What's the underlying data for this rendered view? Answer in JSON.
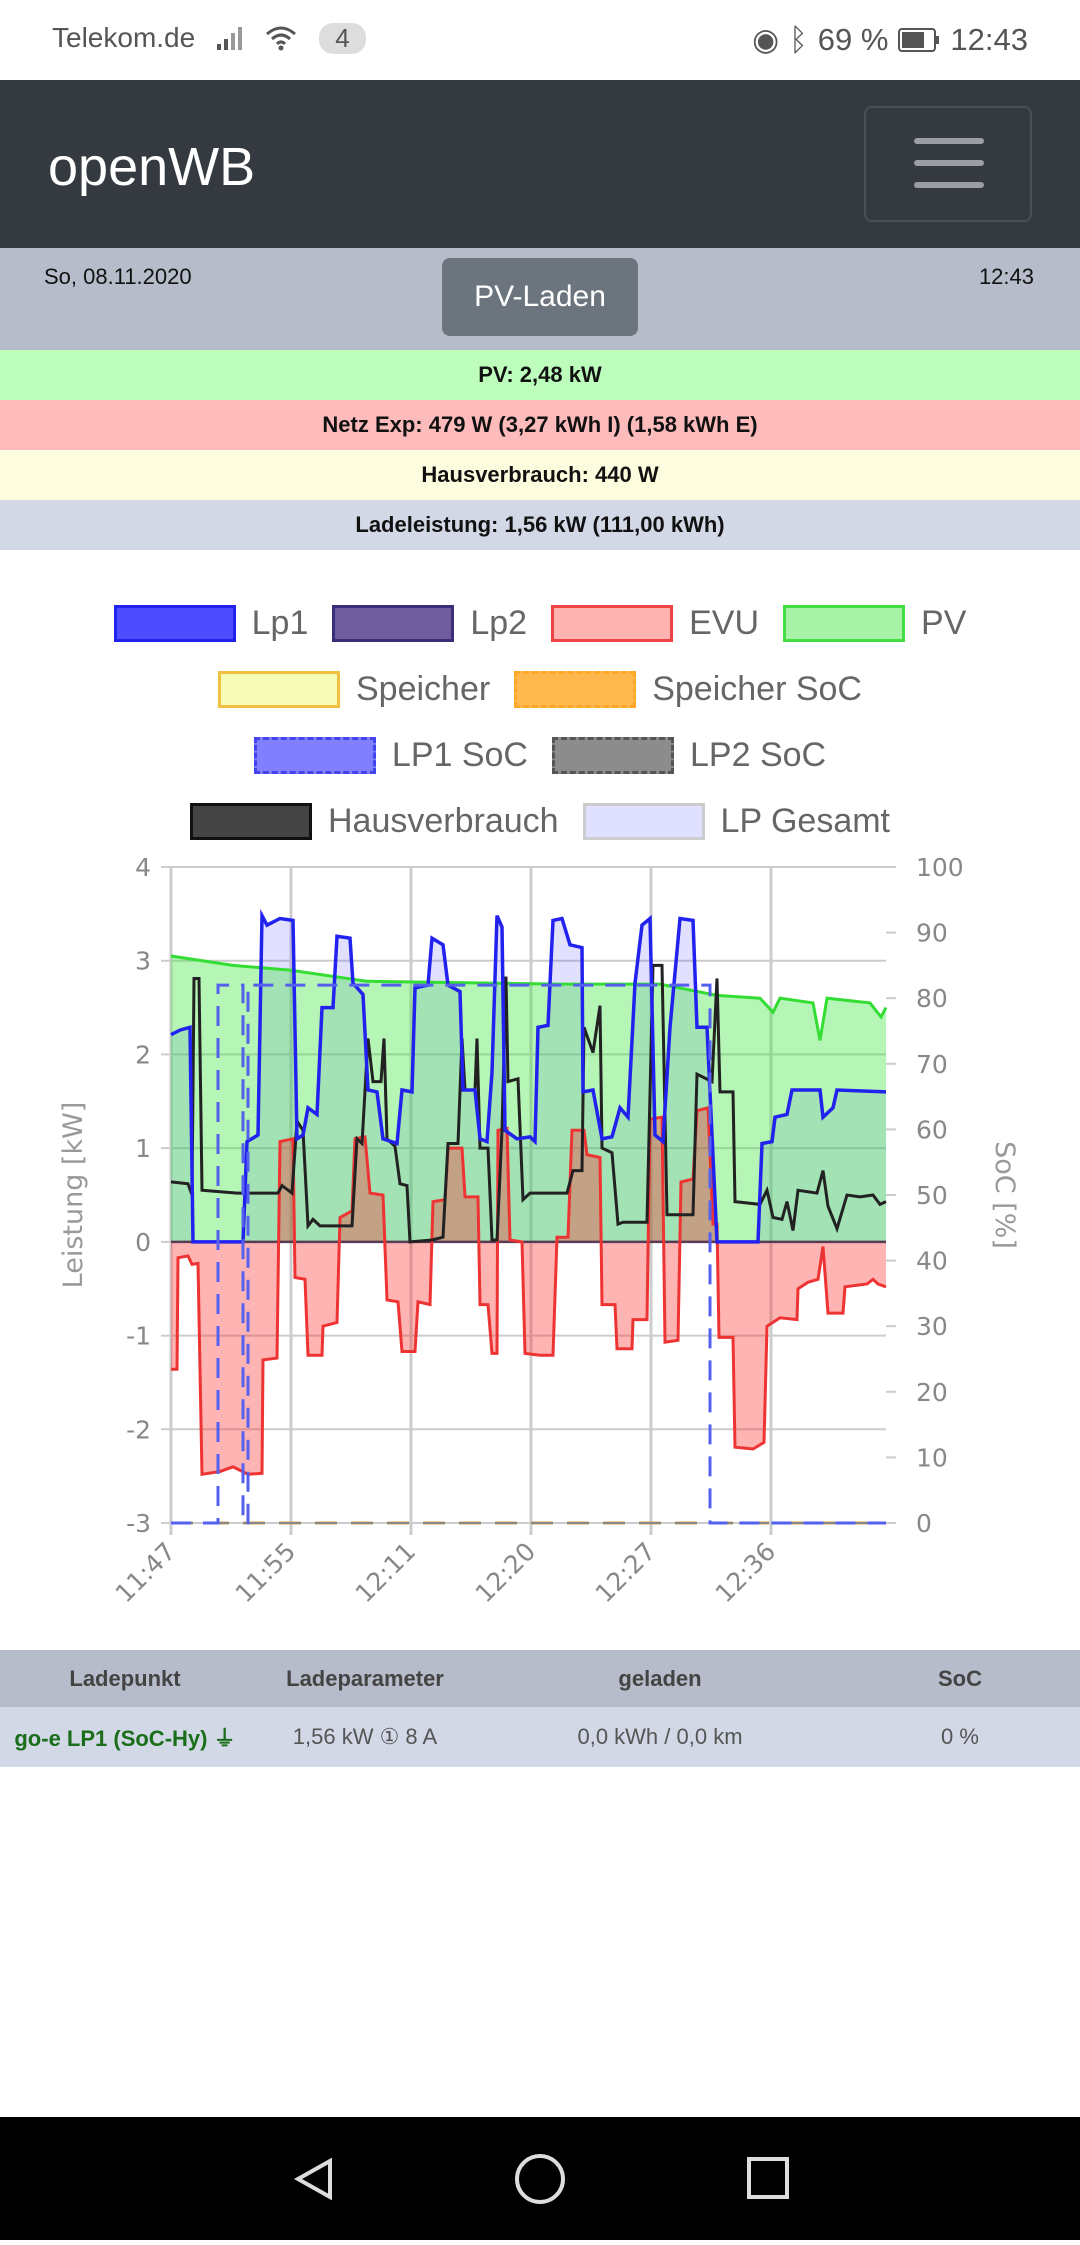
{
  "status_bar": {
    "carrier": "Telekom.de",
    "notification_count": "4",
    "battery": "69 %",
    "time": "12:43"
  },
  "navbar": {
    "brand": "openWB",
    "menu_icon": "hamburger-icon"
  },
  "info": {
    "date": "So, 08.11.2020",
    "mode_button": "PV-Laden",
    "time": "12:43"
  },
  "summary": {
    "pv": "PV: 2,48 kW",
    "netz": "Netz Exp: 479 W (3,27 kWh I) (1,58 kWh E)",
    "haus": "Hausverbrauch: 440 W",
    "lade": "Ladeleistung: 1,56 kW (111,00 kWh)"
  },
  "colors": {
    "pv_bg": "#bdfebd",
    "netz_bg": "#fdbbbb",
    "haus_bg": "#fefcdf",
    "lade_bg": "#d2d8e6"
  },
  "chart_data": {
    "type": "line",
    "ylabel": "Leistung [kW]",
    "y2label": "SoC [%]",
    "ylim": [
      -3,
      4
    ],
    "y2lim": [
      0,
      100
    ],
    "yticks": [
      "4",
      "3",
      "2",
      "1",
      "0",
      "-1",
      "-2",
      "-3"
    ],
    "y2ticks": [
      "100",
      "90",
      "80",
      "70",
      "60",
      "50",
      "40",
      "30",
      "20",
      "10",
      "0"
    ],
    "xlim": [
      0,
      71.5
    ],
    "xticks": [
      {
        "x": 0,
        "label": "11:47"
      },
      {
        "x": 12,
        "label": "11:55"
      },
      {
        "x": 24,
        "label": "12:11"
      },
      {
        "x": 36,
        "label": "12:20"
      },
      {
        "x": 48,
        "label": "12:27"
      },
      {
        "x": 60,
        "label": "12:36"
      }
    ],
    "grid": true,
    "legend": [
      [
        {
          "name": "Lp1",
          "fill": "#4d4dff",
          "border": "#2222ee"
        },
        {
          "name": "Lp2",
          "fill": "#6e5c9e",
          "border": "#3b2f7c"
        },
        {
          "name": "EVU",
          "fill": "#ffb3b3",
          "border": "#ee4444"
        },
        {
          "name": "PV",
          "fill": "#a8f2a8",
          "border": "#44dd44"
        }
      ],
      [
        {
          "name": "Speicher",
          "fill": "#f6fbb5",
          "border": "#f0c040"
        },
        {
          "name": "Speicher SoC",
          "fill": "#ffb84d",
          "border": "#ffa726",
          "dashed": true
        }
      ],
      [
        {
          "name": "LP1 SoC",
          "fill": "#8080ff",
          "border": "#4444ee",
          "dashed": true
        },
        {
          "name": "LP2 SoC",
          "fill": "#8c8c8c",
          "border": "#555555",
          "dashed": true
        }
      ],
      [
        {
          "name": "Hausverbrauch",
          "fill": "#444444",
          "border": "#111111"
        },
        {
          "name": "LP Gesamt",
          "fill": "#e0e0ff",
          "border": "#cccccc"
        }
      ]
    ],
    "series": {
      "pv": [
        [
          0,
          3.05
        ],
        [
          6.2,
          2.95
        ],
        [
          11.9,
          2.9
        ],
        [
          19.6,
          2.78
        ],
        [
          38.9,
          2.75
        ],
        [
          48.9,
          2.75
        ],
        [
          54.6,
          2.63
        ],
        [
          58.9,
          2.6
        ],
        [
          60.2,
          2.45
        ],
        [
          60.9,
          2.6
        ],
        [
          64.2,
          2.55
        ],
        [
          64.9,
          2.15
        ],
        [
          65.6,
          2.6
        ],
        [
          69.9,
          2.55
        ],
        [
          71,
          2.4
        ],
        [
          71.5,
          2.5
        ]
      ],
      "lp1": [
        [
          0,
          2.21
        ],
        [
          0.9,
          2.26
        ],
        [
          1.9,
          2.29
        ],
        [
          2.2,
          0
        ],
        [
          7.2,
          0
        ],
        [
          7.6,
          1.07
        ],
        [
          8.7,
          1.14
        ],
        [
          9.1,
          3.48
        ],
        [
          9.6,
          3.38
        ],
        [
          10.9,
          3.45
        ],
        [
          12.2,
          3.43
        ],
        [
          12.6,
          1.1
        ],
        [
          13.2,
          1.14
        ],
        [
          13.7,
          1.43
        ],
        [
          14.6,
          1.36
        ],
        [
          15.1,
          2.5
        ],
        [
          16.2,
          2.5
        ],
        [
          16.6,
          3.26
        ],
        [
          17.9,
          3.24
        ],
        [
          18.2,
          2.76
        ],
        [
          19.2,
          2.64
        ],
        [
          19.7,
          1.62
        ],
        [
          20.6,
          1.6
        ],
        [
          21.2,
          1.1
        ],
        [
          22.6,
          1.05
        ],
        [
          23.1,
          1.62
        ],
        [
          24.1,
          1.6
        ],
        [
          24.4,
          2.71
        ],
        [
          25.7,
          2.74
        ],
        [
          26.1,
          3.24
        ],
        [
          27.2,
          3.17
        ],
        [
          27.7,
          2.74
        ],
        [
          28.9,
          2.67
        ],
        [
          29.2,
          1.62
        ],
        [
          30.4,
          1.62
        ],
        [
          30.9,
          1.1
        ],
        [
          31.6,
          1.07
        ],
        [
          32.1,
          1.81
        ],
        [
          32.6,
          3.48
        ],
        [
          33.1,
          3.36
        ],
        [
          33.4,
          1.19
        ],
        [
          34.6,
          1.1
        ],
        [
          35.9,
          1.12
        ],
        [
          36.4,
          1.07
        ],
        [
          36.7,
          2.29
        ],
        [
          37.7,
          2.31
        ],
        [
          38.2,
          3.43
        ],
        [
          39.1,
          3.45
        ],
        [
          39.9,
          3.17
        ],
        [
          41.1,
          3.14
        ],
        [
          41.2,
          1.6
        ],
        [
          42.2,
          1.62
        ],
        [
          43.1,
          1.1
        ],
        [
          44.1,
          1.12
        ],
        [
          44.9,
          1.43
        ],
        [
          45.7,
          1.33
        ],
        [
          46.4,
          2.76
        ],
        [
          47.1,
          3.38
        ],
        [
          47.9,
          3.45
        ],
        [
          48.4,
          1.14
        ],
        [
          49.2,
          1.07
        ],
        [
          49.9,
          2.29
        ],
        [
          50.9,
          3.45
        ],
        [
          52.2,
          3.43
        ],
        [
          52.6,
          2.29
        ],
        [
          53.6,
          2.29
        ],
        [
          54.1,
          1.14
        ],
        [
          54.6,
          0
        ],
        [
          58.7,
          0
        ],
        [
          59.1,
          1.05
        ],
        [
          60.1,
          1.07
        ],
        [
          60.4,
          1.33
        ],
        [
          61.6,
          1.36
        ],
        [
          62.1,
          1.62
        ],
        [
          64.9,
          1.62
        ],
        [
          65.2,
          1.33
        ],
        [
          66.2,
          1.43
        ],
        [
          66.6,
          1.62
        ],
        [
          71.5,
          1.6
        ]
      ],
      "evu": [
        [
          0,
          -1.36
        ],
        [
          0.6,
          -1.36
        ],
        [
          0.7,
          -0.17
        ],
        [
          1.7,
          -0.15
        ],
        [
          2.1,
          -0.24
        ],
        [
          2.7,
          -0.23
        ],
        [
          3.1,
          -2.48
        ],
        [
          4.9,
          -2.45
        ],
        [
          6.2,
          -2.4
        ],
        [
          7.7,
          -2.48
        ],
        [
          9.1,
          -2.47
        ],
        [
          9.2,
          -1.26
        ],
        [
          10.6,
          -1.24
        ],
        [
          10.9,
          1.07
        ],
        [
          12.2,
          1.1
        ],
        [
          12.4,
          -0.38
        ],
        [
          13.4,
          -0.4
        ],
        [
          13.7,
          -1.21
        ],
        [
          15.1,
          -1.21
        ],
        [
          15.2,
          -0.9
        ],
        [
          16.6,
          -0.86
        ],
        [
          16.9,
          0.26
        ],
        [
          18.1,
          0.33
        ],
        [
          18.4,
          1.1
        ],
        [
          19.4,
          1.12
        ],
        [
          19.9,
          0.52
        ],
        [
          21.2,
          0.5
        ],
        [
          21.6,
          -0.62
        ],
        [
          22.7,
          -0.64
        ],
        [
          23.1,
          -1.17
        ],
        [
          24.4,
          -1.17
        ],
        [
          24.7,
          -0.64
        ],
        [
          25.9,
          -0.67
        ],
        [
          26.2,
          0.43
        ],
        [
          27.4,
          0.45
        ],
        [
          27.7,
          1.0
        ],
        [
          29.1,
          1.0
        ],
        [
          29.4,
          0.48
        ],
        [
          30.7,
          0.48
        ],
        [
          30.9,
          -0.67
        ],
        [
          31.7,
          -0.67
        ],
        [
          32.1,
          -1.19
        ],
        [
          32.6,
          -1.19
        ],
        [
          32.7,
          1.19
        ],
        [
          33.6,
          1.21
        ],
        [
          33.9,
          0.02
        ],
        [
          35.1,
          0
        ],
        [
          35.4,
          -1.19
        ],
        [
          36.9,
          -1.21
        ],
        [
          38.2,
          -1.21
        ],
        [
          38.6,
          0.05
        ],
        [
          39.7,
          0.05
        ],
        [
          40.1,
          1.19
        ],
        [
          41.3,
          1.19
        ],
        [
          41.6,
          0.93
        ],
        [
          42.9,
          0.9
        ],
        [
          43.1,
          -0.67
        ],
        [
          44.4,
          -0.67
        ],
        [
          44.6,
          -1.14
        ],
        [
          46.1,
          -1.14
        ],
        [
          46.2,
          -0.83
        ],
        [
          47.6,
          -0.83
        ],
        [
          47.9,
          1.31
        ],
        [
          49.1,
          1.33
        ],
        [
          49.4,
          -1.07
        ],
        [
          50.7,
          -1.05
        ],
        [
          51,
          0.64
        ],
        [
          52.2,
          0.67
        ],
        [
          52.6,
          1.4
        ],
        [
          53.7,
          1.43
        ],
        [
          54.2,
          0.19
        ],
        [
          54.6,
          0.19
        ],
        [
          54.8,
          -1.02
        ],
        [
          56.2,
          -1.02
        ],
        [
          56.4,
          -2.19
        ],
        [
          58.2,
          -2.21
        ],
        [
          59.3,
          -2.14
        ],
        [
          59.6,
          -0.9
        ],
        [
          60.9,
          -0.81
        ],
        [
          62.6,
          -0.83
        ],
        [
          62.7,
          -0.5
        ],
        [
          63.7,
          -0.43
        ],
        [
          64.7,
          -0.4
        ],
        [
          65.2,
          -0.05
        ],
        [
          65.7,
          -0.76
        ],
        [
          67.2,
          -0.76
        ],
        [
          67.4,
          -0.48
        ],
        [
          69.6,
          -0.45
        ],
        [
          70.2,
          -0.4
        ],
        [
          70.7,
          -0.45
        ],
        [
          71.5,
          -0.48
        ]
      ],
      "haus": [
        [
          0,
          0.64
        ],
        [
          1.7,
          0.62
        ],
        [
          2.1,
          0.5
        ],
        [
          2.3,
          2.81
        ],
        [
          2.8,
          2.81
        ],
        [
          3.1,
          0.55
        ],
        [
          6.6,
          0.52
        ],
        [
          10.7,
          0.52
        ],
        [
          11.1,
          0.6
        ],
        [
          12.1,
          0.52
        ],
        [
          12.6,
          1.29
        ],
        [
          13.2,
          1.19
        ],
        [
          13.7,
          0.17
        ],
        [
          14.2,
          0.24
        ],
        [
          14.9,
          0.17
        ],
        [
          18.1,
          0.17
        ],
        [
          18.6,
          1.1
        ],
        [
          19.1,
          1.05
        ],
        [
          19.7,
          2.17
        ],
        [
          20.2,
          1.71
        ],
        [
          21.0,
          1.71
        ],
        [
          21.3,
          2.17
        ],
        [
          21.6,
          1.1
        ],
        [
          22.4,
          1.02
        ],
        [
          22.9,
          0.62
        ],
        [
          23.6,
          0.6
        ],
        [
          23.9,
          0
        ],
        [
          26.1,
          0.02
        ],
        [
          27.2,
          0.05
        ],
        [
          27.7,
          1.05
        ],
        [
          28.7,
          1.05
        ],
        [
          29.1,
          2.17
        ],
        [
          29.4,
          1.62
        ],
        [
          30.4,
          1.62
        ],
        [
          30.6,
          2.17
        ],
        [
          30.9,
          1.0
        ],
        [
          31.7,
          1.0
        ],
        [
          32.1,
          0.02
        ],
        [
          32.6,
          0.02
        ],
        [
          33.1,
          1.19
        ],
        [
          33.5,
          2.83
        ],
        [
          33.7,
          1.71
        ],
        [
          34.7,
          1.74
        ],
        [
          35.2,
          0.45
        ],
        [
          35.9,
          0.52
        ],
        [
          39.6,
          0.52
        ],
        [
          40.2,
          0.76
        ],
        [
          41.1,
          0.76
        ],
        [
          41.3,
          2.29
        ],
        [
          42.2,
          2.02
        ],
        [
          42.9,
          2.52
        ],
        [
          43.1,
          1.0
        ],
        [
          44.1,
          0.95
        ],
        [
          44.7,
          0.19
        ],
        [
          45.2,
          0.21
        ],
        [
          47.6,
          0.21
        ],
        [
          48.2,
          2.95
        ],
        [
          49.1,
          2.95
        ],
        [
          49.6,
          0.29
        ],
        [
          52.2,
          0.29
        ],
        [
          52.6,
          1.79
        ],
        [
          54.1,
          1.71
        ],
        [
          54.6,
          2.81
        ],
        [
          54.9,
          1.6
        ],
        [
          56.2,
          1.6
        ],
        [
          56.4,
          0.43
        ],
        [
          58.9,
          0.4
        ],
        [
          59.6,
          0.55
        ],
        [
          60.2,
          0.26
        ],
        [
          61.1,
          0.24
        ],
        [
          61.6,
          0.43
        ],
        [
          62.2,
          0.12
        ],
        [
          62.7,
          0.55
        ],
        [
          64.6,
          0.52
        ],
        [
          65.2,
          0.76
        ],
        [
          65.7,
          0.38
        ],
        [
          66.6,
          0.14
        ],
        [
          67.6,
          0.5
        ],
        [
          68.9,
          0.48
        ],
        [
          70.2,
          0.5
        ],
        [
          70.9,
          0.4
        ],
        [
          71.5,
          0.43
        ]
      ],
      "lp1_soc": [
        [
          0,
          0
        ],
        [
          4.7,
          0
        ],
        [
          4.7,
          82
        ],
        [
          7.2,
          82
        ],
        [
          7.2,
          0
        ],
        [
          7.7,
          0
        ],
        [
          7.7,
          82
        ],
        [
          53.9,
          82
        ],
        [
          53.9,
          0
        ],
        [
          71.5,
          0
        ]
      ],
      "lp2_soc": [
        [
          0,
          0
        ],
        [
          71.5,
          0
        ]
      ],
      "speicher_soc": [
        [
          0,
          0
        ],
        [
          71.5,
          0
        ]
      ]
    }
  },
  "table": {
    "headers": [
      "Ladepunkt",
      "Ladeparameter",
      "geladen",
      "SoC"
    ],
    "rows": [
      {
        "name": "go-e LP1 (SoC-Hy)",
        "params": "1,56 kW ① 8 A",
        "charged": "0,0 kWh / 0,0 km",
        "soc": "0 %"
      }
    ]
  }
}
